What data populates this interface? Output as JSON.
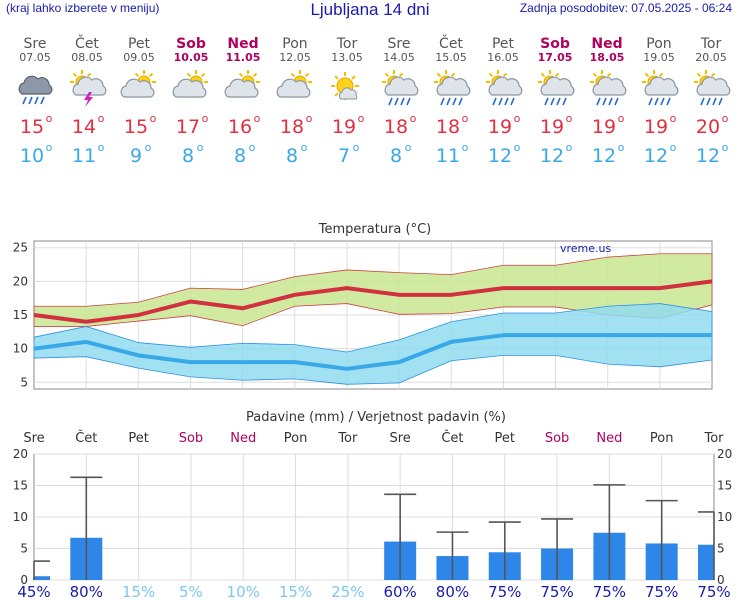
{
  "header": {
    "left": "(kraj lahko izberete v meniju)",
    "title": "Ljubljana 14 dni",
    "right": "Zadnja posodobitev: 07.05.2025 - 06:24"
  },
  "colors": {
    "weekday": "#555555",
    "weekend": "#b00060",
    "tmax": "#e03040",
    "tmin": "#38a8e8",
    "bar": "#2e86e8",
    "prob_high": "#1a1ab0",
    "prob_low": "#7cc8f0"
  },
  "days": [
    {
      "name": "Sre",
      "date": "07.05",
      "weekend": false,
      "icon": "rain-cloud-icon",
      "tmax": "15",
      "tmin": "10"
    },
    {
      "name": "Čet",
      "date": "08.05",
      "weekend": false,
      "icon": "thunder-sun-cloud-icon",
      "tmax": "14",
      "tmin": "11"
    },
    {
      "name": "Pet",
      "date": "09.05",
      "weekend": false,
      "icon": "sun-cloud-icon",
      "tmax": "15",
      "tmin": "9"
    },
    {
      "name": "Sob",
      "date": "10.05",
      "weekend": true,
      "icon": "sun-cloud-icon",
      "tmax": "17",
      "tmin": "8"
    },
    {
      "name": "Ned",
      "date": "11.05",
      "weekend": true,
      "icon": "sun-cloud-icon",
      "tmax": "16",
      "tmin": "8"
    },
    {
      "name": "Pon",
      "date": "12.05",
      "weekend": false,
      "icon": "sun-cloud-icon",
      "tmax": "18",
      "tmin": "8"
    },
    {
      "name": "Tor",
      "date": "13.05",
      "weekend": false,
      "icon": "sun-small-cloud-icon",
      "tmax": "19",
      "tmin": "7"
    },
    {
      "name": "Sre",
      "date": "14.05",
      "weekend": false,
      "icon": "sun-rain-cloud-icon",
      "tmax": "18",
      "tmin": "8"
    },
    {
      "name": "Čet",
      "date": "15.05",
      "weekend": false,
      "icon": "sun-rain-cloud-icon",
      "tmax": "18",
      "tmin": "11"
    },
    {
      "name": "Pet",
      "date": "16.05",
      "weekend": false,
      "icon": "sun-rain-cloud-icon",
      "tmax": "19",
      "tmin": "12"
    },
    {
      "name": "Sob",
      "date": "17.05",
      "weekend": true,
      "icon": "sun-rain-cloud-icon",
      "tmax": "19",
      "tmin": "12"
    },
    {
      "name": "Ned",
      "date": "18.05",
      "weekend": true,
      "icon": "sun-rain-cloud-icon",
      "tmax": "19",
      "tmin": "12"
    },
    {
      "name": "Pon",
      "date": "19.05",
      "weekend": false,
      "icon": "sun-rain-cloud-icon",
      "tmax": "19",
      "tmin": "12"
    },
    {
      "name": "Tor",
      "date": "20.05",
      "weekend": false,
      "icon": "sun-rain-cloud-icon",
      "tmax": "20",
      "tmin": "12"
    }
  ],
  "degree_symbol": "o",
  "chart_data": [
    {
      "type": "line",
      "title": "Temperatura (°C)",
      "watermark": "vreme.us",
      "ylim": [
        4,
        26
      ],
      "yticks": [
        5,
        10,
        15,
        20,
        25
      ],
      "grid": true,
      "x": [
        "07.05",
        "08.05",
        "09.05",
        "10.05",
        "11.05",
        "12.05",
        "13.05",
        "14.05",
        "15.05",
        "16.05",
        "17.05",
        "18.05",
        "19.05",
        "20.05"
      ],
      "series": [
        {
          "values": [
            15,
            14,
            15,
            17,
            16,
            18,
            19,
            18,
            18,
            19,
            19,
            19,
            19,
            20
          ],
          "color": "#d03040"
        },
        {
          "values": [
            10,
            11,
            9,
            8,
            8,
            8,
            7,
            8,
            11,
            12,
            12,
            12,
            12,
            12
          ],
          "color": "#38a8e8"
        }
      ],
      "bands": [
        {
          "upper": [
            16.3,
            16.3,
            16.9,
            19.0,
            18.8,
            20.7,
            21.7,
            21.3,
            21.0,
            22.4,
            22.4,
            23.6,
            24.1,
            24.1
          ],
          "lower": [
            13.3,
            13.3,
            14.1,
            14.9,
            13.4,
            16.3,
            16.7,
            15.1,
            15.2,
            16.2,
            16.2,
            15.0,
            14.5,
            16.5
          ],
          "color": "#c8e890"
        },
        {
          "upper": [
            11.7,
            13.3,
            10.9,
            10.2,
            10.8,
            10.6,
            9.5,
            11.3,
            14.0,
            15.3,
            15.3,
            16.3,
            16.7,
            15.5
          ],
          "lower": [
            8.6,
            8.8,
            7.1,
            5.8,
            5.3,
            5.5,
            4.7,
            4.9,
            8.2,
            9.0,
            9.0,
            7.7,
            7.3,
            8.3
          ],
          "color": "#90dcf0"
        }
      ]
    },
    {
      "type": "bar",
      "title": "Padavine (mm) / Verjetnost padavin (%)",
      "ylim": [
        0,
        20
      ],
      "yticks": [
        0,
        5,
        10,
        15,
        20
      ],
      "grid": true,
      "categories": [
        "Sre",
        "Čet",
        "Pet",
        "Sob",
        "Ned",
        "Pon",
        "Tor",
        "Sre",
        "Čet",
        "Pet",
        "Sob",
        "Ned",
        "Pon",
        "Tor"
      ],
      "values": [
        0.6,
        6.7,
        0,
        0,
        0,
        0,
        0,
        6.1,
        3.8,
        4.4,
        5.0,
        7.5,
        5.8,
        5.6
      ],
      "error_max": [
        3.0,
        16.3,
        0,
        0,
        0,
        0,
        0,
        13.6,
        7.6,
        9.2,
        9.7,
        15.1,
        12.6,
        10.8
      ],
      "probabilities": [
        "45%",
        "80%",
        "15%",
        "5%",
        "10%",
        "15%",
        "25%",
        "60%",
        "80%",
        "75%",
        "75%",
        "75%",
        "75%",
        "75%"
      ],
      "prob_values": [
        45,
        80,
        15,
        5,
        10,
        15,
        25,
        60,
        80,
        75,
        75,
        75,
        75,
        75
      ]
    }
  ]
}
